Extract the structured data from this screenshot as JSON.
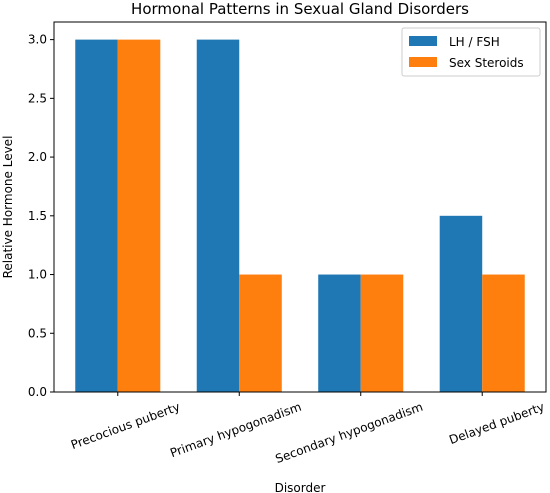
{
  "chart_data": {
    "type": "bar",
    "title": "Hormonal Patterns in Sexual Gland Disorders",
    "xlabel": "Disorder",
    "ylabel": "Relative Hormone Level",
    "categories": [
      "Precocious puberty",
      "Primary hypogonadism",
      "Secondary hypogonadism",
      "Delayed puberty"
    ],
    "series": [
      {
        "name": "LH / FSH",
        "values": [
          3.0,
          3.0,
          1.0,
          1.5
        ],
        "color": "#1f77b4"
      },
      {
        "name": "Sex Steroids",
        "values": [
          3.0,
          1.0,
          1.0,
          1.0
        ],
        "color": "#ff7f0e"
      }
    ],
    "ylim": [
      0,
      3.15
    ],
    "yticks": [
      "0.0",
      "0.5",
      "1.0",
      "1.5",
      "2.0",
      "2.5",
      "3.0"
    ],
    "legend": "top-right",
    "grid": false
  }
}
